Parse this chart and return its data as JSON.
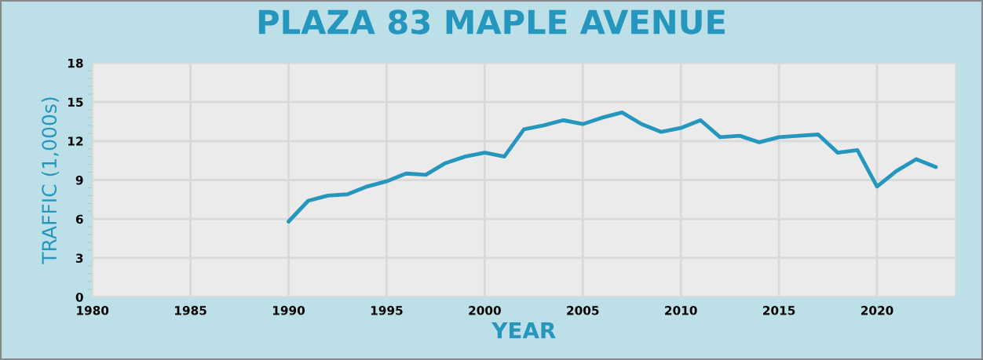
{
  "chart_data": {
    "type": "line",
    "title": "PLAZA 83 MAPLE AVENUE",
    "xlabel": "YEAR",
    "ylabel": "TRAFFIC (1,000s)",
    "x": [
      1990,
      1991,
      1992,
      1993,
      1994,
      1995,
      1996,
      1997,
      1998,
      1999,
      2000,
      2001,
      2002,
      2003,
      2004,
      2005,
      2006,
      2007,
      2008,
      2009,
      2010,
      2011,
      2012,
      2013,
      2014,
      2015,
      2016,
      2017,
      2018,
      2019,
      2020,
      2021,
      2022,
      2023
    ],
    "series": [
      {
        "color": "#2596be",
        "values": [
          5.8,
          7.4,
          7.8,
          7.9,
          8.5,
          8.9,
          9.5,
          9.4,
          10.3,
          10.8,
          11.1,
          10.8,
          12.9,
          13.2,
          13.6,
          13.3,
          13.8,
          14.2,
          13.3,
          12.7,
          13.0,
          13.6,
          12.3,
          12.4,
          11.9,
          12.3,
          12.4,
          12.5,
          11.1,
          11.3,
          8.5,
          9.7,
          10.6,
          10.0
        ]
      }
    ],
    "xlim": [
      1980,
      2024
    ],
    "xticks": [
      1980,
      1985,
      1990,
      1995,
      2000,
      2005,
      2010,
      2015,
      2020
    ],
    "ylim": [
      0,
      18
    ],
    "yticks": [
      0,
      3,
      6,
      9,
      12,
      15,
      18
    ],
    "grid": true,
    "legend": false,
    "marker": "none",
    "line_style": "solid"
  }
}
